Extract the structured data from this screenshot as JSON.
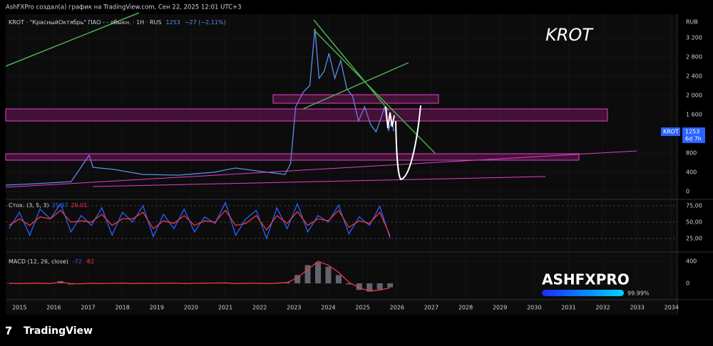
{
  "header": {
    "text": "AshFXPro создал(а) график на TradingView.com, Сен 22, 2025 12:01 UTC+3"
  },
  "footer": {
    "brand": "TradingView"
  },
  "watermark": {
    "text": "ASHFXPRO",
    "percent": "99.99%"
  },
  "chart_data": [
    {
      "type": "line",
      "legend": "KROT · \"КрасныйОктябрь\" ПАО - - обыкн. · 1H · RUS",
      "last": 1253,
      "change": "−27 (−2,11%)",
      "annotation": "KROT",
      "currency": "RUB",
      "price_tag": {
        "symbol": "KROT",
        "value": 1253,
        "countdown": "6d 7h"
      },
      "color": "#5b8def",
      "x": [
        2014.6,
        2015.48,
        2016.51,
        2017.03,
        2017.14,
        2017.76,
        2018.59,
        2019.63,
        2020.66,
        2021.29,
        2021.91,
        2022.74,
        2022.9,
        2023.05,
        2023.26,
        2023.46,
        2023.61,
        2023.73,
        2023.88,
        2024.02,
        2024.19,
        2024.36,
        2024.54,
        2024.71,
        2024.88,
        2025.06,
        2025.23,
        2025.39,
        2025.54,
        2025.64,
        2025.75,
        2025.85,
        2025.91
      ],
      "values": [
        133,
        163,
        207,
        756,
        504,
        459,
        356,
        341,
        400,
        489,
        430,
        356,
        578,
        1763,
        2059,
        2207,
        3393,
        2356,
        2504,
        2874,
        2356,
        2726,
        2133,
        1985,
        1467,
        1763,
        1393,
        1244,
        1541,
        1763,
        1274,
        1467,
        1253
      ],
      "xlim": [
        2014.6,
        2034.17
      ],
      "xticks": [
        2015,
        2016,
        2017,
        2018,
        2019,
        2020,
        2021,
        2022,
        2023,
        2024,
        2025,
        2026,
        2027,
        2028,
        2029,
        2030,
        2031,
        2032,
        2033,
        2034
      ],
      "ylim": [
        -133,
        3660
      ],
      "yticks": [
        0,
        400,
        800,
        {
          "value": 1600,
          "label": "1 600"
        },
        {
          "value": 2000,
          "label": "2 000"
        },
        {
          "value": 2400,
          "label": "2 400"
        },
        {
          "value": 2800,
          "label": "2 800"
        },
        {
          "value": 3200,
          "label": "3 200"
        }
      ]
    },
    {
      "type": "line",
      "legend": "Стох. (3, 5, 3)",
      "x": [
        2014.7,
        2015.0,
        2015.3,
        2015.6,
        2015.9,
        2016.2,
        2016.5,
        2016.8,
        2017.1,
        2017.4,
        2017.7,
        2018.0,
        2018.3,
        2018.6,
        2018.9,
        2019.2,
        2019.5,
        2019.8,
        2020.1,
        2020.4,
        2020.7,
        2021.0,
        2021.3,
        2021.6,
        2021.9,
        2022.2,
        2022.5,
        2022.8,
        2023.1,
        2023.4,
        2023.7,
        2024.0,
        2024.3,
        2024.6,
        2024.9,
        2025.2,
        2025.5,
        2025.8
      ],
      "series": [
        {
          "color": "#2962ff",
          "last": 25.37,
          "values": [
            40,
            65,
            30,
            70,
            55,
            78,
            35,
            60,
            45,
            72,
            30,
            65,
            50,
            75,
            28,
            62,
            40,
            70,
            35,
            58,
            48,
            80,
            30,
            55,
            68,
            25,
            72,
            40,
            78,
            35,
            60,
            50,
            76,
            32,
            58,
            45,
            74,
            25.37
          ]
        },
        {
          "color": "#f23645",
          "last": 29.01,
          "values": [
            45,
            55,
            45,
            58,
            55,
            68,
            50,
            52,
            50,
            62,
            45,
            55,
            55,
            65,
            40,
            52,
            48,
            60,
            45,
            52,
            50,
            68,
            45,
            48,
            60,
            38,
            60,
            48,
            66,
            45,
            55,
            52,
            68,
            42,
            52,
            48,
            65,
            29.01
          ]
        }
      ],
      "ylim": [
        6.5,
        83.7
      ],
      "yticks": [
        {
          "value": 25,
          "label": "25,00"
        },
        {
          "value": 50,
          "label": "50,00"
        },
        {
          "value": 75,
          "label": "75,00"
        }
      ]
    },
    {
      "type": "macd",
      "legend": "MACD (12, 26, close)",
      "x": [
        2014.7,
        2015.0,
        2015.3,
        2015.6,
        2015.9,
        2016.2,
        2016.5,
        2016.8,
        2017.1,
        2017.4,
        2017.7,
        2018.0,
        2018.3,
        2018.6,
        2018.9,
        2019.2,
        2019.5,
        2019.8,
        2020.1,
        2020.4,
        2020.7,
        2021.0,
        2021.3,
        2021.6,
        2021.9,
        2022.2,
        2022.5,
        2022.8,
        2023.1,
        2023.4,
        2023.7,
        2024.0,
        2024.3,
        2024.6,
        2024.9,
        2025.2,
        2025.5,
        2025.8
      ],
      "series": [
        {
          "kind": "histogram",
          "color": "#787b86",
          "last": -72,
          "values": [
            5,
            -4,
            3,
            6,
            -5,
            40,
            -20,
            -10,
            4,
            -3,
            2,
            5,
            -4,
            3,
            -2,
            4,
            6,
            -3,
            2,
            5,
            8,
            10,
            -5,
            3,
            4,
            -6,
            5,
            20,
            150,
            330,
            380,
            300,
            150,
            -20,
            -120,
            -150,
            -110,
            -72
          ]
        },
        {
          "kind": "line",
          "color": "#f23645",
          "last": -82,
          "values": [
            3,
            -2,
            2,
            4,
            -3,
            25,
            -5,
            -8,
            2,
            -2,
            1,
            4,
            -3,
            2,
            -1,
            3,
            5,
            -2,
            1,
            4,
            6,
            9,
            -3,
            2,
            3,
            -4,
            4,
            15,
            100,
            250,
            400,
            330,
            200,
            20,
            -80,
            -140,
            -120,
            -82
          ]
        }
      ],
      "ylim": [
        -284,
        542
      ],
      "yticks": [
        0,
        400
      ]
    }
  ]
}
